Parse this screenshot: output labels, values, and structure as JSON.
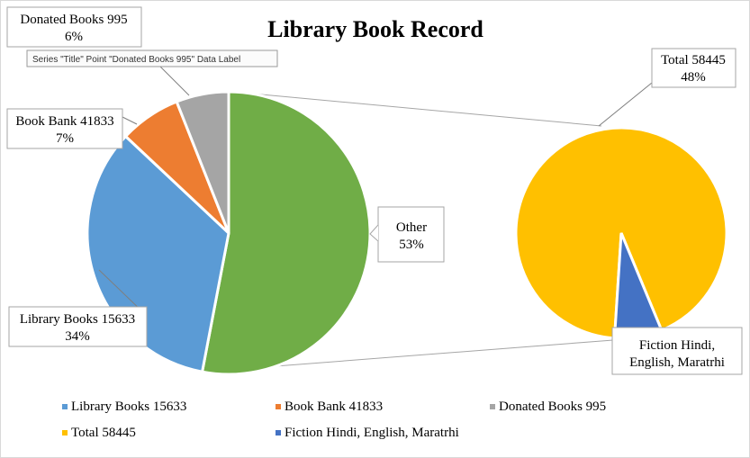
{
  "chart_data": {
    "type": "pie",
    "subtype": "pie-of-pie",
    "title": "Library Book Record",
    "main_pie": {
      "slices": [
        {
          "label": "Library Books 15633",
          "value": 15633,
          "percent_label": "34%",
          "color": "#5b9bd5"
        },
        {
          "label": "Book Bank 41833",
          "value": 41833,
          "percent_label": "7%",
          "color": "#ed7d31"
        },
        {
          "label": "Donated Books 995",
          "value": 995,
          "percent_label": "6%",
          "color": "#a5a5a5"
        },
        {
          "label": "Other",
          "percent_label": "53%",
          "color": "#70ad47"
        }
      ]
    },
    "secondary_pie": {
      "slices": [
        {
          "label": "Total 58445",
          "value": 58445,
          "percent_label": "48%",
          "color": "#ffc000"
        },
        {
          "label": "Fiction Hindi, English, Maratrhi",
          "percent_label": "",
          "color": "#4472c4"
        }
      ]
    },
    "legend": {
      "placement": "bottom",
      "items": [
        {
          "label": "Library Books 15633",
          "color": "#5b9bd5"
        },
        {
          "label": "Book Bank 41833",
          "color": "#ed7d31"
        },
        {
          "label": "Donated Books 995",
          "color": "#a5a5a5"
        },
        {
          "label": "Total 58445",
          "color": "#ffc000"
        },
        {
          "label": "Fiction Hindi, English, Maratrhi",
          "color": "#4472c4"
        }
      ]
    },
    "tooltip": "Series \"Title\" Point \"Donated Books 995\" Data Label"
  }
}
